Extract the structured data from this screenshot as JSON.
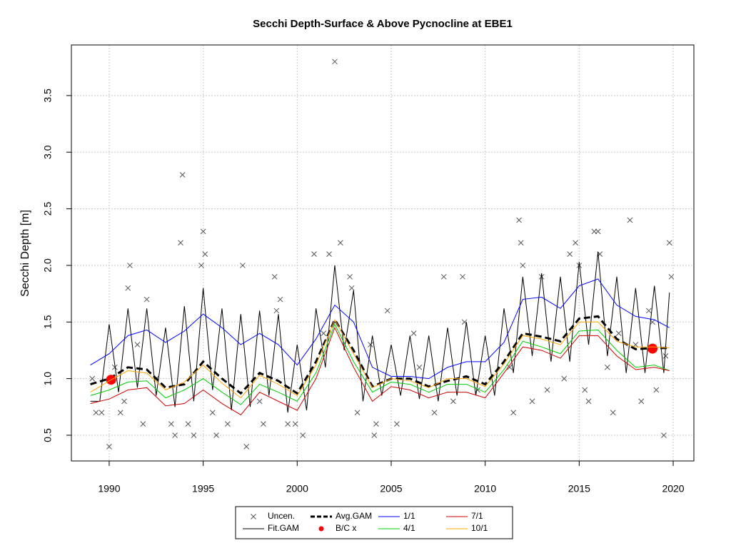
{
  "chart_data": {
    "type": "line",
    "title": "Secchi Depth-Surface & Above Pycnocline at EBE1",
    "y_label": "Secchi Depth [m]",
    "xlim": [
      1987.99,
      2021.1
    ],
    "ylim": [
      0.273,
      3.947
    ],
    "xticks": [
      1990,
      1995,
      2000,
      2005,
      2010,
      2015,
      2020
    ],
    "yticks": [
      0.5,
      {
        "value": 1,
        "label": "1.0"
      },
      1.5,
      {
        "value": 2,
        "label": "2.0"
      },
      2.5,
      {
        "value": 3,
        "label": "3.0"
      },
      3.5
    ],
    "grid": true,
    "legend": "bottom",
    "series": [
      {
        "name": "Uncen.",
        "color": "#555555",
        "marker": "x",
        "x": [
          1989.1,
          1989.3,
          1989.6,
          1990.0,
          1990.3,
          1990.6,
          1990.8,
          1991.0,
          1991.1,
          1991.5,
          1991.8,
          1992.0,
          1992.5,
          1993.3,
          1993.5,
          1993.8,
          1993.9,
          1994.2,
          1994.5,
          1994.9,
          1995.0,
          1995.1,
          1995.5,
          1995.7,
          1996.3,
          1997.1,
          1997.3,
          1998.0,
          1998.2,
          1998.8,
          1998.9,
          1999.1,
          1999.5,
          1999.9,
          2000.3,
          2000.9,
          2001.4,
          2001.7,
          2002.0,
          2002.3,
          2002.8,
          2002.9,
          2003.2,
          2003.9,
          2004.1,
          2004.2,
          2004.8,
          2005.3,
          2006.2,
          2006.5,
          2007.3,
          2007.8,
          2008.3,
          2008.8,
          2008.9,
          2009.6,
          2011.3,
          2011.5,
          2011.8,
          2011.9,
          2012.0,
          2012.5,
          2013.0,
          2013.3,
          2014.2,
          2014.5,
          2014.8,
          2015.0,
          2015.3,
          2015.5,
          2015.8,
          2016.0,
          2016.1,
          2016.5,
          2016.8,
          2017.1,
          2017.7,
          2018.0,
          2018.3,
          2018.7,
          2018.9,
          2019.1,
          2019.5,
          2019.6,
          2019.8,
          2019.9
        ],
        "values": [
          1.0,
          0.7,
          0.7,
          0.4,
          1.1,
          0.7,
          0.8,
          1.8,
          2.0,
          1.3,
          0.6,
          1.7,
          1.0,
          0.6,
          0.5,
          2.2,
          2.8,
          0.6,
          0.5,
          2.0,
          2.3,
          2.1,
          0.7,
          0.5,
          0.6,
          2.0,
          0.4,
          0.8,
          0.6,
          1.9,
          1.6,
          1.7,
          0.6,
          0.6,
          0.5,
          2.1,
          1.4,
          2.1,
          3.8,
          2.2,
          1.9,
          1.8,
          0.7,
          1.3,
          0.5,
          0.6,
          1.6,
          0.6,
          1.4,
          1.1,
          0.7,
          1.9,
          0.8,
          1.9,
          1.5,
          0.9,
          1.1,
          0.7,
          2.4,
          2.2,
          2.0,
          0.8,
          1.9,
          0.9,
          1.0,
          2.1,
          2.2,
          2.0,
          0.9,
          0.8,
          2.3,
          2.3,
          2.1,
          1.1,
          0.7,
          1.4,
          2.4,
          1.3,
          0.8,
          1.6,
          1.5,
          0.9,
          0.5,
          1.2,
          2.2,
          1.9
        ]
      },
      {
        "name": "Fit.GAM",
        "color": "#000000",
        "marker": "line",
        "width": 1,
        "x": [
          1989,
          1989.5,
          1990,
          1990.5,
          1991,
          1991.5,
          1992,
          1992.5,
          1993,
          1993.5,
          1994,
          1994.5,
          1995,
          1995.5,
          1996,
          1996.5,
          1997,
          1997.5,
          1998,
          1998.5,
          1999,
          1999.5,
          2000,
          2000.5,
          2001,
          2001.5,
          2002,
          2002.5,
          2003,
          2003.5,
          2004,
          2004.5,
          2005,
          2005.5,
          2006,
          2006.5,
          2007,
          2007.5,
          2008,
          2008.5,
          2009,
          2009.5,
          2010,
          2010.5,
          2011,
          2011.5,
          2012,
          2012.5,
          2013,
          2013.5,
          2014,
          2014.5,
          2015,
          2015.5,
          2016,
          2016.5,
          2017,
          2017.5,
          2018,
          2018.5,
          2019,
          2019.5,
          2019.8
        ],
        "values": [
          0.8,
          0.8,
          1.48,
          0.88,
          1.62,
          0.92,
          1.62,
          0.85,
          1.45,
          0.75,
          1.64,
          0.8,
          1.8,
          0.9,
          1.62,
          0.72,
          1.57,
          0.75,
          1.6,
          0.85,
          1.57,
          0.7,
          1.3,
          0.72,
          1.62,
          1.1,
          2.0,
          1.25,
          1.78,
          0.8,
          1.38,
          0.85,
          1.3,
          0.85,
          1.38,
          0.82,
          1.38,
          0.8,
          1.45,
          0.85,
          1.5,
          0.85,
          1.38,
          0.85,
          1.62,
          1.05,
          1.9,
          1.2,
          1.93,
          1.15,
          1.9,
          1.15,
          2.03,
          1.3,
          2.12,
          1.2,
          1.9,
          1.05,
          1.8,
          1.05,
          1.82,
          1.05,
          1.76
        ]
      },
      {
        "name": "Avg.GAM",
        "color": "#000000",
        "marker": "line",
        "width": 3,
        "dash": true,
        "x": [
          1989,
          1990,
          1991,
          1992,
          1993,
          1994,
          1995,
          1996,
          1997,
          1998,
          1999,
          2000,
          2001,
          2002,
          2003,
          2004,
          2005,
          2006,
          2007,
          2008,
          2009,
          2010,
          2011,
          2012,
          2013,
          2014,
          2015,
          2016,
          2017,
          2018,
          2019,
          2019.8
        ],
        "values": [
          0.95,
          1.0,
          1.1,
          1.08,
          0.92,
          0.95,
          1.15,
          1.0,
          0.87,
          1.05,
          0.98,
          0.87,
          1.15,
          1.52,
          1.25,
          0.93,
          1.0,
          1.0,
          0.93,
          0.98,
          1.02,
          0.95,
          1.15,
          1.4,
          1.37,
          1.33,
          1.53,
          1.55,
          1.35,
          1.26,
          1.27,
          1.27
        ]
      },
      {
        "name": "B/C x",
        "color": "#ff0000",
        "marker": "dot",
        "x": [
          1990.1,
          2018.9
        ],
        "values": [
          0.99,
          1.265
        ]
      },
      {
        "name": "1/1",
        "color": "#0000ff",
        "marker": "line",
        "width": 1,
        "x": [
          1989,
          1990,
          1991,
          1992,
          1993,
          1994,
          1995,
          1996,
          1997,
          1998,
          1999,
          2000,
          2001,
          2002,
          2003,
          2004,
          2005,
          2006,
          2007,
          2008,
          2009,
          2010,
          2011,
          2012,
          2013,
          2014,
          2015,
          2016,
          2017,
          2018,
          2019,
          2019.8
        ],
        "values": [
          1.12,
          1.22,
          1.38,
          1.43,
          1.32,
          1.42,
          1.57,
          1.45,
          1.3,
          1.4,
          1.3,
          1.12,
          1.35,
          1.65,
          1.5,
          1.1,
          1.02,
          1.02,
          1.0,
          1.1,
          1.15,
          1.15,
          1.32,
          1.7,
          1.72,
          1.62,
          1.82,
          1.88,
          1.65,
          1.55,
          1.52,
          1.45
        ]
      },
      {
        "name": "4/1",
        "color": "#00cc00",
        "marker": "line",
        "width": 1,
        "x": [
          1989,
          1990,
          1991,
          1992,
          1993,
          1994,
          1995,
          1996,
          1997,
          1998,
          1999,
          2000,
          2001,
          2002,
          2003,
          2004,
          2005,
          2006,
          2007,
          2008,
          2009,
          2010,
          2011,
          2012,
          2013,
          2014,
          2015,
          2016,
          2017,
          2018,
          2019,
          2019.8
        ],
        "values": [
          0.85,
          0.9,
          0.97,
          0.98,
          0.83,
          0.9,
          1.0,
          0.88,
          0.77,
          0.95,
          0.88,
          0.8,
          1.05,
          1.48,
          1.15,
          0.88,
          0.97,
          0.95,
          0.88,
          0.95,
          0.95,
          0.88,
          1.08,
          1.33,
          1.28,
          1.22,
          1.42,
          1.43,
          1.25,
          1.1,
          1.12,
          1.07
        ]
      },
      {
        "name": "7/1",
        "color": "#cc0000",
        "marker": "line",
        "width": 1,
        "x": [
          1989,
          1990,
          1991,
          1992,
          1993,
          1994,
          1995,
          1996,
          1997,
          1998,
          1999,
          2000,
          2001,
          2002,
          2003,
          2004,
          2005,
          2006,
          2007,
          2008,
          2009,
          2010,
          2011,
          2012,
          2013,
          2014,
          2015,
          2016,
          2017,
          2018,
          2019,
          2019.8
        ],
        "values": [
          0.78,
          0.82,
          0.9,
          0.92,
          0.76,
          0.78,
          0.9,
          0.78,
          0.68,
          0.88,
          0.8,
          0.72,
          1.0,
          1.45,
          1.1,
          0.8,
          0.93,
          0.9,
          0.83,
          0.88,
          0.88,
          0.83,
          1.05,
          1.28,
          1.25,
          1.18,
          1.38,
          1.38,
          1.2,
          1.08,
          1.1,
          1.07
        ]
      },
      {
        "name": "10/1",
        "color": "#ffa500",
        "marker": "line",
        "width": 1,
        "x": [
          1989,
          1990,
          1991,
          1992,
          1993,
          1994,
          1995,
          1996,
          1997,
          1998,
          1999,
          2000,
          2001,
          2002,
          2003,
          2004,
          2005,
          2006,
          2007,
          2008,
          2009,
          2010,
          2011,
          2012,
          2013,
          2014,
          2015,
          2016,
          2017,
          2018,
          2019,
          2019.8
        ],
        "values": [
          0.88,
          0.98,
          1.07,
          1.05,
          0.9,
          0.97,
          1.12,
          0.96,
          0.83,
          1.03,
          0.95,
          0.85,
          1.12,
          1.52,
          1.22,
          0.92,
          1.0,
          0.98,
          0.92,
          1.0,
          1.0,
          0.93,
          1.13,
          1.38,
          1.35,
          1.3,
          1.5,
          1.5,
          1.33,
          1.28,
          1.28,
          1.27
        ]
      }
    ]
  }
}
